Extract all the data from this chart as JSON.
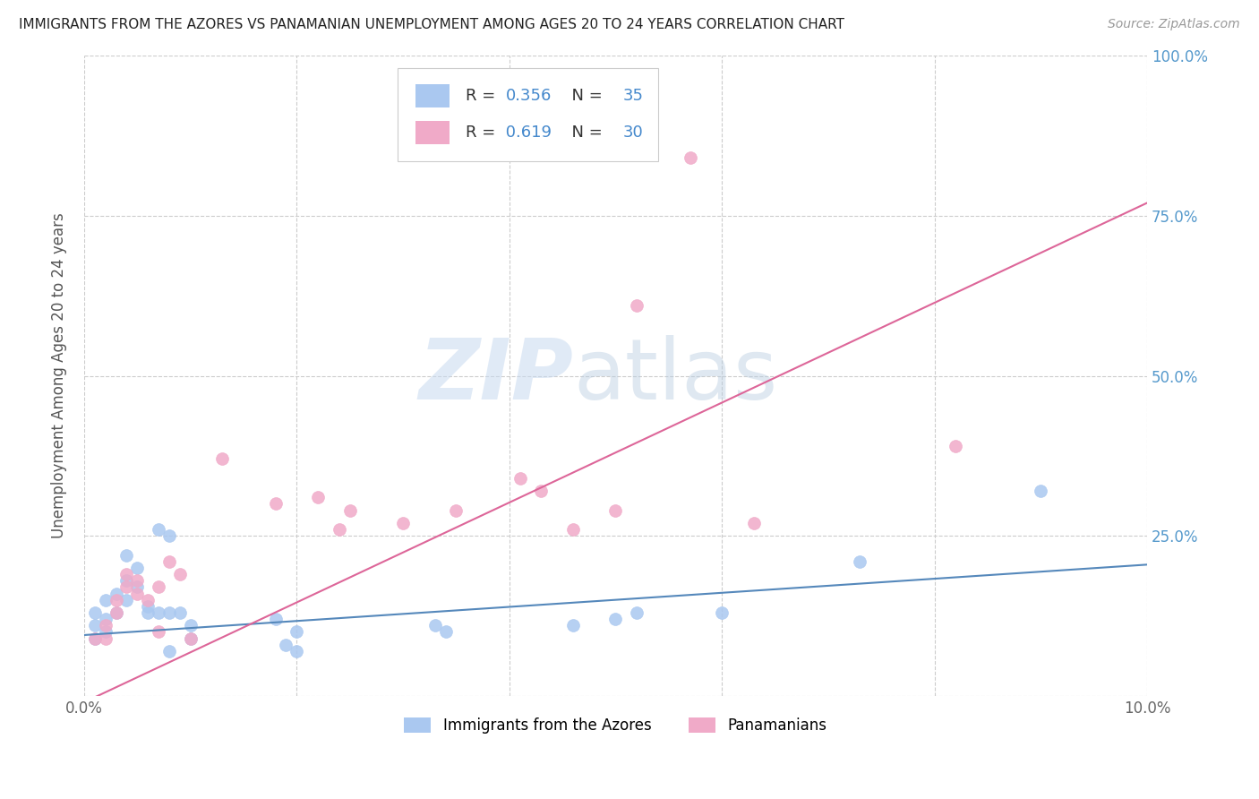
{
  "title": "IMMIGRANTS FROM THE AZORES VS PANAMANIAN UNEMPLOYMENT AMONG AGES 20 TO 24 YEARS CORRELATION CHART",
  "source": "Source: ZipAtlas.com",
  "ylabel": "Unemployment Among Ages 20 to 24 years",
  "legend_bottom": [
    "Immigrants from the Azores",
    "Panamanians"
  ],
  "xlim": [
    0.0,
    0.1
  ],
  "ylim": [
    0.0,
    1.0
  ],
  "xticks": [
    0.0,
    0.02,
    0.04,
    0.06,
    0.08,
    0.1
  ],
  "xtick_labels": [
    "0.0%",
    "",
    "",
    "",
    "",
    "10.0%"
  ],
  "yticks": [
    0.0,
    0.25,
    0.5,
    0.75,
    1.0
  ],
  "ytick_labels_right": [
    "",
    "25.0%",
    "50.0%",
    "75.0%",
    "100.0%"
  ],
  "color_blue": "#aac8f0",
  "color_pink": "#f0aac8",
  "line_blue": "#5588bb",
  "line_pink": "#dd6699",
  "blue_scatter": [
    [
      0.001,
      0.13
    ],
    [
      0.001,
      0.11
    ],
    [
      0.001,
      0.09
    ],
    [
      0.002,
      0.15
    ],
    [
      0.002,
      0.12
    ],
    [
      0.002,
      0.1
    ],
    [
      0.003,
      0.16
    ],
    [
      0.003,
      0.13
    ],
    [
      0.004,
      0.18
    ],
    [
      0.004,
      0.15
    ],
    [
      0.004,
      0.22
    ],
    [
      0.005,
      0.2
    ],
    [
      0.005,
      0.17
    ],
    [
      0.006,
      0.14
    ],
    [
      0.006,
      0.13
    ],
    [
      0.007,
      0.26
    ],
    [
      0.007,
      0.13
    ],
    [
      0.008,
      0.25
    ],
    [
      0.008,
      0.13
    ],
    [
      0.008,
      0.07
    ],
    [
      0.009,
      0.13
    ],
    [
      0.01,
      0.09
    ],
    [
      0.01,
      0.11
    ],
    [
      0.018,
      0.12
    ],
    [
      0.019,
      0.08
    ],
    [
      0.02,
      0.1
    ],
    [
      0.02,
      0.07
    ],
    [
      0.033,
      0.11
    ],
    [
      0.034,
      0.1
    ],
    [
      0.046,
      0.11
    ],
    [
      0.05,
      0.12
    ],
    [
      0.052,
      0.13
    ],
    [
      0.06,
      0.13
    ],
    [
      0.073,
      0.21
    ],
    [
      0.09,
      0.32
    ]
  ],
  "pink_scatter": [
    [
      0.001,
      0.09
    ],
    [
      0.002,
      0.11
    ],
    [
      0.002,
      0.09
    ],
    [
      0.003,
      0.15
    ],
    [
      0.003,
      0.13
    ],
    [
      0.004,
      0.19
    ],
    [
      0.004,
      0.17
    ],
    [
      0.005,
      0.18
    ],
    [
      0.005,
      0.16
    ],
    [
      0.006,
      0.15
    ],
    [
      0.007,
      0.17
    ],
    [
      0.007,
      0.1
    ],
    [
      0.008,
      0.21
    ],
    [
      0.009,
      0.19
    ],
    [
      0.01,
      0.09
    ],
    [
      0.013,
      0.37
    ],
    [
      0.018,
      0.3
    ],
    [
      0.022,
      0.31
    ],
    [
      0.024,
      0.26
    ],
    [
      0.025,
      0.29
    ],
    [
      0.03,
      0.27
    ],
    [
      0.035,
      0.29
    ],
    [
      0.041,
      0.34
    ],
    [
      0.043,
      0.32
    ],
    [
      0.046,
      0.26
    ],
    [
      0.05,
      0.29
    ],
    [
      0.052,
      0.61
    ],
    [
      0.057,
      0.84
    ],
    [
      0.063,
      0.27
    ],
    [
      0.082,
      0.39
    ]
  ],
  "blue_line_x": [
    0.0,
    0.1
  ],
  "blue_line_y": [
    0.095,
    0.205
  ],
  "pink_line_x": [
    0.0,
    0.1
  ],
  "pink_line_y": [
    -0.01,
    0.77
  ],
  "watermark_zip": "ZIP",
  "watermark_atlas": "atlas",
  "background": "#ffffff",
  "grid_color": "#cccccc",
  "legend_R1": "R = 0.356",
  "legend_N1": "N = 35",
  "legend_R2": "R = 0.619",
  "legend_N2": "N = 30",
  "text_color": "#333333",
  "blue_text_color": "#4488cc",
  "right_axis_color": "#5599cc",
  "title_fontsize": 11,
  "source_fontsize": 10,
  "axis_fontsize": 12,
  "legend_fontsize": 13
}
